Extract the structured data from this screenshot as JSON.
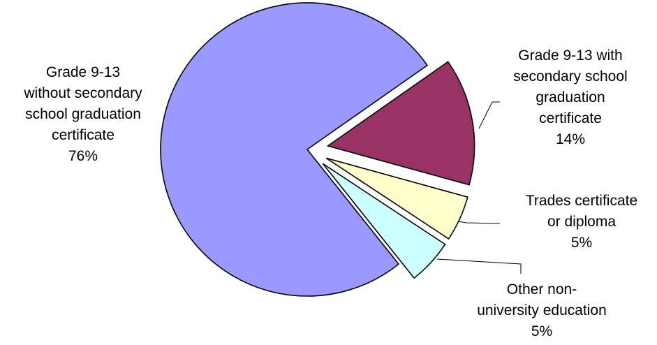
{
  "chart_data": {
    "type": "pie",
    "title": "",
    "slices": [
      {
        "label": "Grade 9-13 with secondary school graduation certificate",
        "value": 14,
        "display": [
          "Grade 9-13 with",
          "secondary school",
          "graduation",
          "certificate",
          "14%"
        ],
        "color": "#993366",
        "exploded": true
      },
      {
        "label": "Trades certificate or diploma",
        "value": 5,
        "display": [
          "Trades certificate",
          "or diploma",
          "5%"
        ],
        "color": "#ffffcc",
        "exploded": true
      },
      {
        "label": "Other non-university education",
        "value": 5,
        "display": [
          "Other non-",
          "university education",
          "5%"
        ],
        "color": "#ccffff",
        "exploded": true
      },
      {
        "label": "Grade 9-13 without secondary school graduation certificate",
        "value": 76,
        "display": [
          "Grade 9-13",
          "without secondary",
          "school graduation",
          "certificate",
          "76%"
        ],
        "color": "#9999ff",
        "exploded": false
      }
    ],
    "legend": "none",
    "labels": "outside"
  }
}
